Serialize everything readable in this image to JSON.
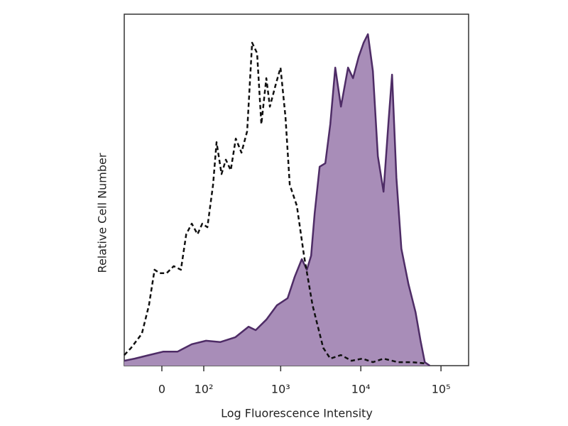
{
  "chart_data": {
    "type": "histogram-overlay",
    "xlabel": "Log Fluorescence Intensity",
    "ylabel": "Relative Cell Number",
    "xscale": "asinh",
    "xscale_cofactor": 66,
    "xlim": [
      -86,
      221000
    ],
    "ylim": [
      0,
      100
    ],
    "xticks": [
      0,
      {
        "value": 100,
        "label": "10²"
      },
      {
        "value": 1000,
        "label": "10³"
      },
      {
        "value": 10000,
        "label": "10⁴"
      },
      {
        "value": 100000,
        "label": "10⁵"
      }
    ],
    "series": [
      {
        "color": "#4e2c66",
        "fill": "#a88db8",
        "dash": false,
        "x": [
          -86,
          -57,
          -25,
          3,
          31,
          64,
          108,
          170,
          269,
          395,
          486,
          661,
          899,
          1222,
          1497,
          1838,
          2121,
          2398,
          2656,
          3065,
          3607,
          4161,
          4800,
          5650,
          6930,
          7995,
          9412,
          10860,
          12270,
          14155,
          16330,
          19226,
          22180,
          24550,
          27760,
          32030,
          39300,
          48180,
          55570,
          62830,
          72430
        ],
        "values": [
          1.4,
          2.0,
          3.0,
          4.0,
          4.0,
          6.1,
          7.1,
          6.7,
          8.1,
          11.1,
          10.1,
          13.1,
          17.2,
          19.2,
          25.3,
          30.3,
          27.3,
          31.3,
          43.4,
          56.6,
          57.6,
          68.7,
          84.8,
          73.7,
          84.8,
          81.8,
          87.9,
          91.9,
          94.3,
          83.8,
          59.6,
          49.5,
          69.7,
          82.8,
          53.5,
          33.3,
          23.2,
          15.2,
          7.1,
          1.0,
          0
        ]
      },
      {
        "color": "#111111",
        "fill": "none",
        "dash": true,
        "x": [
          -86,
          -66,
          -40,
          -25,
          -14,
          -4,
          9,
          23,
          38,
          50,
          64,
          80,
          95,
          113,
          136,
          152,
          177,
          202,
          234,
          272,
          321,
          379,
          438,
          506,
          573,
          661,
          733,
          863,
          995,
          1149,
          1299,
          1593,
          1955,
          2498,
          3392,
          4161,
          5650,
          7672,
          10424,
          14155,
          19226,
          28937,
          43533,
          65469
        ],
        "values": [
          3.0,
          5.1,
          9.1,
          17.2,
          27.3,
          26.3,
          26.3,
          28.3,
          27.3,
          37.4,
          40.4,
          37.4,
          40.4,
          39.4,
          51.5,
          63.6,
          54.5,
          58.6,
          55.6,
          64.6,
          60.6,
          66.7,
          91.9,
          88.9,
          68.7,
          81.8,
          73.7,
          79.8,
          84.8,
          70.7,
          51.5,
          45.5,
          31.3,
          17.2,
          5.1,
          2.0,
          3.0,
          1.4,
          2.0,
          1.0,
          2.0,
          1.0,
          1.0,
          0.6
        ]
      }
    ]
  }
}
